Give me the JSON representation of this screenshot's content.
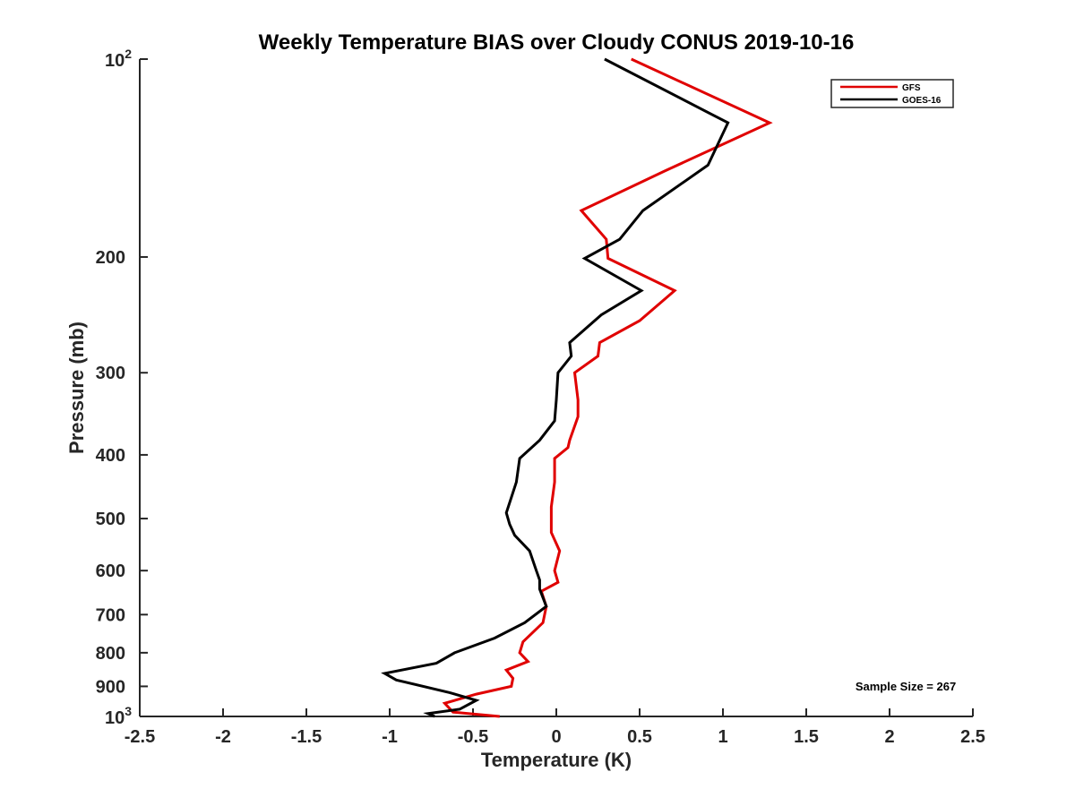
{
  "chart_data": {
    "type": "line",
    "title": "Weekly Temperature BIAS over Cloudy CONUS 2019-10-16",
    "xlabel": "Temperature (K)",
    "ylabel": "Pressure (mb)",
    "xlim": [
      -2.5,
      2.5
    ],
    "ylim": [
      100,
      1000
    ],
    "y_scale": "log",
    "y_reversed": true,
    "x_ticks": [
      {
        "value": -2.5,
        "label": "-2.5"
      },
      {
        "value": -2,
        "label": "-2"
      },
      {
        "value": -1.5,
        "label": "-1.5"
      },
      {
        "value": -1,
        "label": "-1"
      },
      {
        "value": -0.5,
        "label": "-0.5"
      },
      {
        "value": 0,
        "label": "0"
      },
      {
        "value": 0.5,
        "label": "0.5"
      },
      {
        "value": 1,
        "label": "1"
      },
      {
        "value": 1.5,
        "label": "1.5"
      },
      {
        "value": 2,
        "label": "2"
      },
      {
        "value": 2.5,
        "label": "2.5"
      }
    ],
    "y_ticks": [
      {
        "value": 100,
        "base": "10",
        "exp": "2"
      },
      {
        "value": 200,
        "label": "200"
      },
      {
        "value": 300,
        "label": "300"
      },
      {
        "value": 400,
        "label": "400"
      },
      {
        "value": 500,
        "label": "500"
      },
      {
        "value": 600,
        "label": "600"
      },
      {
        "value": 700,
        "label": "700"
      },
      {
        "value": 800,
        "label": "800"
      },
      {
        "value": 900,
        "label": "900"
      },
      {
        "value": 1000,
        "base": "10",
        "exp": "3"
      }
    ],
    "grid": false,
    "legend_position": "top-right",
    "series": [
      {
        "name": "GFS",
        "color": "#e00000",
        "points": [
          [
            0.45,
            100
          ],
          [
            1.28,
            125
          ],
          [
            0.65,
            148
          ],
          [
            0.15,
            170
          ],
          [
            0.3,
            188
          ],
          [
            0.31,
            201
          ],
          [
            0.71,
            225
          ],
          [
            0.5,
            250
          ],
          [
            0.26,
            270
          ],
          [
            0.25,
            283
          ],
          [
            0.11,
            300
          ],
          [
            0.13,
            330
          ],
          [
            0.13,
            350
          ],
          [
            0.08,
            380
          ],
          [
            0.07,
            390
          ],
          [
            -0.01,
            405
          ],
          [
            -0.01,
            440
          ],
          [
            -0.03,
            480
          ],
          [
            -0.03,
            525
          ],
          [
            0.02,
            560
          ],
          [
            -0.01,
            600
          ],
          [
            0.01,
            625
          ],
          [
            -0.09,
            645
          ],
          [
            -0.06,
            680
          ],
          [
            -0.08,
            720
          ],
          [
            -0.2,
            770
          ],
          [
            -0.22,
            800
          ],
          [
            -0.17,
            825
          ],
          [
            -0.3,
            850
          ],
          [
            -0.26,
            875
          ],
          [
            -0.27,
            900
          ],
          [
            -0.48,
            925
          ],
          [
            -0.67,
            955
          ],
          [
            -0.62,
            985
          ],
          [
            -0.34,
            1000
          ]
        ]
      },
      {
        "name": "GOES-16",
        "color": "#000000",
        "points": [
          [
            0.29,
            100
          ],
          [
            1.03,
            125
          ],
          [
            0.91,
            145
          ],
          [
            0.52,
            170
          ],
          [
            0.38,
            188
          ],
          [
            0.17,
            201
          ],
          [
            0.51,
            225
          ],
          [
            0.27,
            245
          ],
          [
            0.08,
            270
          ],
          [
            0.09,
            283
          ],
          [
            0.01,
            300
          ],
          [
            0.0,
            330
          ],
          [
            -0.01,
            355
          ],
          [
            -0.1,
            380
          ],
          [
            -0.22,
            405
          ],
          [
            -0.24,
            440
          ],
          [
            -0.3,
            490
          ],
          [
            -0.28,
            510
          ],
          [
            -0.25,
            530
          ],
          [
            -0.16,
            560
          ],
          [
            -0.12,
            600
          ],
          [
            -0.1,
            620
          ],
          [
            -0.1,
            640
          ],
          [
            -0.06,
            680
          ],
          [
            -0.19,
            720
          ],
          [
            -0.37,
            760
          ],
          [
            -0.61,
            800
          ],
          [
            -0.72,
            830
          ],
          [
            -1.03,
            860
          ],
          [
            -0.96,
            880
          ],
          [
            -0.64,
            920
          ],
          [
            -0.48,
            945
          ],
          [
            -0.58,
            975
          ],
          [
            -0.77,
            990
          ],
          [
            -0.73,
            1000
          ]
        ]
      }
    ],
    "annotation": "Sample Size = 267"
  }
}
